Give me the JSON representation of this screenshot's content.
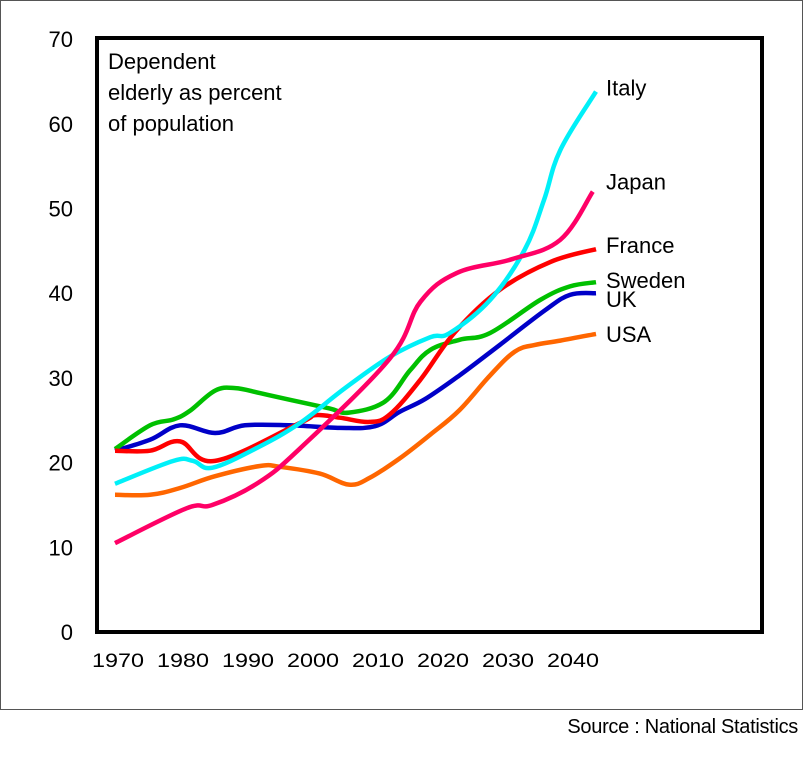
{
  "chart_data": {
    "type": "line",
    "title": "",
    "annotation": [
      "Dependent",
      "elderly as percent",
      "of population"
    ],
    "xlabel": "",
    "ylabel": "",
    "xlim": [
      1967,
      2070
    ],
    "ylim": [
      0,
      70
    ],
    "xticks": [
      1970,
      1980,
      1990,
      2000,
      2010,
      2020,
      2030,
      2040
    ],
    "yticks": [
      0,
      10,
      20,
      30,
      40,
      50,
      60,
      70
    ],
    "grid": false,
    "legend": "inline labels at line ends (right)",
    "source": "Source : National Statistics",
    "series": [
      {
        "name": "Italy",
        "color": "#00f0f8",
        "points": [
          [
            1970,
            17.5
          ],
          [
            1979,
            20.2
          ],
          [
            1982,
            20.2
          ],
          [
            1985,
            19.4
          ],
          [
            1992,
            21.8
          ],
          [
            1998.5,
            24.7
          ],
          [
            2005.4,
            28.8
          ],
          [
            2012.3,
            32.5
          ],
          [
            2018.5,
            34.8
          ],
          [
            2021.5,
            35.3
          ],
          [
            2027.7,
            39.2
          ],
          [
            2033,
            45.1
          ],
          [
            2036,
            51
          ],
          [
            2038.5,
            56.9
          ],
          [
            2044,
            63.8
          ]
        ]
      },
      {
        "name": "Japan",
        "color": "#ff0066",
        "points": [
          [
            1970,
            10.5
          ],
          [
            1981,
            14.6
          ],
          [
            1985,
            15
          ],
          [
            1992,
            17.6
          ],
          [
            1998.5,
            21.7
          ],
          [
            2012.3,
            32.3
          ],
          [
            2017,
            39
          ],
          [
            2022.6,
            42.4
          ],
          [
            2031,
            44
          ],
          [
            2038.5,
            46.3
          ],
          [
            2043.5,
            52
          ]
        ]
      },
      {
        "name": "France",
        "color": "#ff0000",
        "points": [
          [
            1970,
            21.4
          ],
          [
            1975.4,
            21.4
          ],
          [
            1980,
            22.5
          ],
          [
            1985.4,
            20.2
          ],
          [
            1998.5,
            24.7
          ],
          [
            2000.8,
            25.6
          ],
          [
            2004.6,
            25.3
          ],
          [
            2009.2,
            24.8
          ],
          [
            2012.3,
            25.7
          ],
          [
            2017,
            29.8
          ],
          [
            2022.3,
            35.4
          ],
          [
            2029.2,
            40.4
          ],
          [
            2037,
            43.7
          ],
          [
            2044,
            45.2
          ]
        ]
      },
      {
        "name": "Sweden",
        "color": "#00c000",
        "points": [
          [
            1970,
            21.6
          ],
          [
            1975.4,
            24.4
          ],
          [
            1979,
            25.1
          ],
          [
            1981.5,
            26.1
          ],
          [
            1985.4,
            28.5
          ],
          [
            1988.5,
            28.8
          ],
          [
            1992.3,
            28.2
          ],
          [
            1997,
            27.4
          ],
          [
            2003,
            26.4
          ],
          [
            2006,
            25.9
          ],
          [
            2011.5,
            27.2
          ],
          [
            2015.4,
            30.9
          ],
          [
            2018.5,
            33.3
          ],
          [
            2023,
            34.5
          ],
          [
            2027.7,
            35.3
          ],
          [
            2035.4,
            39.2
          ],
          [
            2040,
            40.8
          ],
          [
            2044,
            41.3
          ]
        ]
      },
      {
        "name": "UK",
        "color": "#0000c8",
        "points": [
          [
            1970,
            21.4
          ],
          [
            1975.4,
            22.7
          ],
          [
            1980,
            24.4
          ],
          [
            1985.4,
            23.5
          ],
          [
            1990,
            24.4
          ],
          [
            1997,
            24.4
          ],
          [
            2004.6,
            24.1
          ],
          [
            2010,
            24.3
          ],
          [
            2013.8,
            26
          ],
          [
            2017.7,
            27.5
          ],
          [
            2023,
            30.3
          ],
          [
            2029.2,
            33.9
          ],
          [
            2036.2,
            38
          ],
          [
            2040,
            39.8
          ],
          [
            2044,
            40
          ]
        ]
      },
      {
        "name": "USA",
        "color": "#ff6600",
        "points": [
          [
            1970,
            16.2
          ],
          [
            1975.4,
            16.2
          ],
          [
            1980,
            17
          ],
          [
            1985.4,
            18.4
          ],
          [
            1992.3,
            19.6
          ],
          [
            1995.4,
            19.5
          ],
          [
            2001.5,
            18.7
          ],
          [
            2006,
            17.4
          ],
          [
            2009.2,
            18.2
          ],
          [
            2013.8,
            20.5
          ],
          [
            2018.5,
            23.3
          ],
          [
            2023,
            26.2
          ],
          [
            2027.7,
            30.3
          ],
          [
            2031.5,
            33.1
          ],
          [
            2034.6,
            33.9
          ],
          [
            2038.5,
            34.4
          ],
          [
            2044,
            35.2
          ]
        ]
      }
    ]
  }
}
